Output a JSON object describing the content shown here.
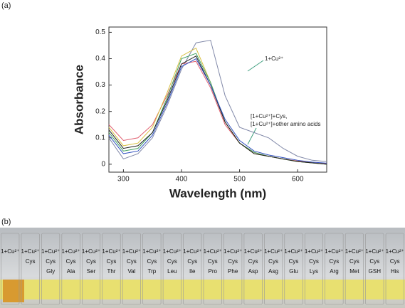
{
  "panel_labels": [
    "(a)",
    "(b)"
  ],
  "chart_data": {
    "type": "line",
    "x_label": "Wavelength (nm)",
    "y_label": "Absorbance",
    "annotations": [
      "1+Cu²⁺",
      "[1+Cu²⁺]+Cys,",
      "[1+Cu²⁺]+other amino acids"
    ],
    "x": [
      275,
      300,
      325,
      350,
      375,
      400,
      425,
      450,
      475,
      500,
      525,
      550,
      575,
      600,
      625,
      650
    ],
    "series": [
      {
        "color": "#8088a8",
        "values": [
          0.1,
          0.02,
          0.04,
          0.1,
          0.22,
          0.36,
          0.46,
          0.47,
          0.26,
          0.14,
          0.12,
          0.1,
          0.06,
          0.03,
          0.015,
          0.01
        ]
      },
      {
        "color": "#e06070",
        "values": [
          0.15,
          0.09,
          0.1,
          0.15,
          0.26,
          0.38,
          0.39,
          0.29,
          0.15,
          0.08,
          0.045,
          0.03,
          0.02,
          0.012,
          0.006,
          0.003
        ]
      },
      {
        "color": "#d8c040",
        "values": [
          0.14,
          0.07,
          0.08,
          0.14,
          0.27,
          0.41,
          0.44,
          0.31,
          0.16,
          0.08,
          0.04,
          0.03,
          0.02,
          0.01,
          0.005,
          0.0
        ]
      },
      {
        "color": "#40a060",
        "values": [
          0.12,
          0.05,
          0.06,
          0.12,
          0.25,
          0.4,
          0.42,
          0.31,
          0.16,
          0.08,
          0.045,
          0.03,
          0.02,
          0.01,
          0.005,
          0.0
        ]
      },
      {
        "color": "#202020",
        "values": [
          0.13,
          0.06,
          0.07,
          0.12,
          0.24,
          0.38,
          0.41,
          0.3,
          0.16,
          0.08,
          0.04,
          0.03,
          0.02,
          0.01,
          0.005,
          0.0
        ]
      },
      {
        "color": "#3050c0",
        "values": [
          0.11,
          0.04,
          0.05,
          0.11,
          0.23,
          0.37,
          0.4,
          0.3,
          0.17,
          0.09,
          0.05,
          0.035,
          0.025,
          0.015,
          0.008,
          0.004
        ]
      }
    ],
    "xlim": [
      275,
      650
    ],
    "xticks": [
      300,
      400,
      500,
      600
    ],
    "ylim": [
      -0.03,
      0.52
    ],
    "yticks": [
      0.0,
      0.1,
      0.2,
      0.3,
      0.4,
      0.5
    ]
  },
  "photo": {
    "vials": [
      {
        "lines": [
          "1+Cu²⁺"
        ]
      },
      {
        "lines": [
          "1+Cu²⁺",
          "Cys"
        ]
      },
      {
        "lines": [
          "1+Cu²⁺",
          "Cys",
          "Gly"
        ]
      },
      {
        "lines": [
          "1+Cu²⁺",
          "Cys",
          "Ala"
        ]
      },
      {
        "lines": [
          "1+Cu²⁺",
          "Cys",
          "Ser"
        ]
      },
      {
        "lines": [
          "1+Cu²⁺",
          "Cys",
          "Thr"
        ]
      },
      {
        "lines": [
          "1+Cu²⁺",
          "Cys",
          "Val"
        ]
      },
      {
        "lines": [
          "1+Cu²⁺",
          "Cys",
          "Trp"
        ]
      },
      {
        "lines": [
          "1+Cu²⁺",
          "Cys",
          "Leu"
        ]
      },
      {
        "lines": [
          "1+Cu²⁺",
          "Cys",
          "Ile"
        ]
      },
      {
        "lines": [
          "1+Cu²⁺",
          "Cys",
          "Pro"
        ]
      },
      {
        "lines": [
          "1+Cu²⁺",
          "Cys",
          "Phe"
        ]
      },
      {
        "lines": [
          "1+Cu²⁺",
          "Cys",
          "Asp"
        ]
      },
      {
        "lines": [
          "1+Cu²⁺",
          "Cys",
          "Asg"
        ]
      },
      {
        "lines": [
          "1+Cu²⁺",
          "Cys",
          "Glu"
        ]
      },
      {
        "lines": [
          "1+Cu²⁺",
          "Cys",
          "Lys"
        ]
      },
      {
        "lines": [
          "1+Cu²⁺",
          "Cys",
          "Arg"
        ]
      },
      {
        "lines": [
          "1+Cu²⁺",
          "Cys",
          "Met"
        ]
      },
      {
        "lines": [
          "1+Cu²⁺",
          "Cys",
          "GSH"
        ]
      },
      {
        "lines": [
          "1+Cu²⁺",
          "Cys",
          "His"
        ]
      }
    ]
  }
}
